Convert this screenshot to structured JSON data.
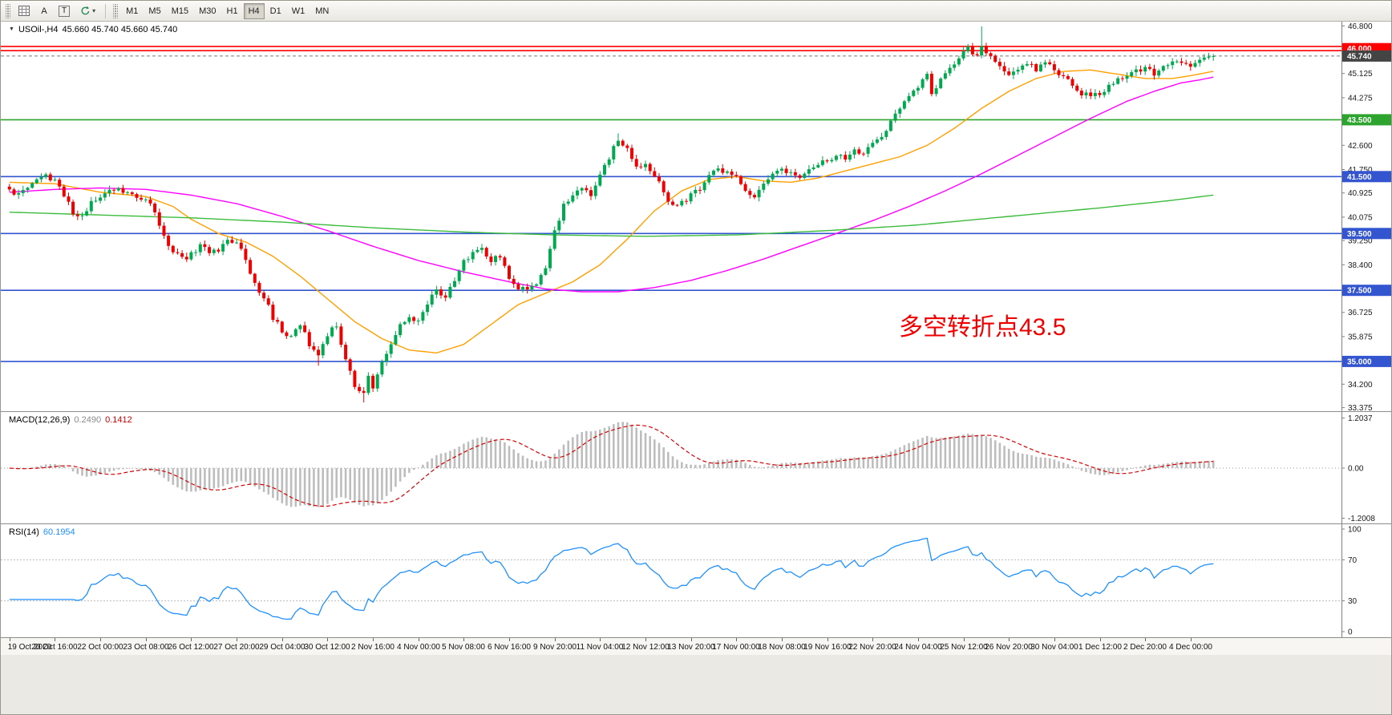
{
  "toolbar": {
    "tools": {
      "a_label": "A",
      "t_label": "T"
    },
    "timeframes": [
      "M1",
      "M5",
      "M15",
      "M30",
      "H1",
      "H4",
      "D1",
      "W1",
      "MN"
    ],
    "active_timeframe": "H4"
  },
  "main_chart": {
    "title": "USOil-,H4",
    "ohlc": "45.660 45.740 45.660 45.740",
    "annotation": {
      "text": "多空转折点43.5",
      "color": "#F00000"
    }
  },
  "chart_data": [
    {
      "type": "candlestick",
      "symbol": "USOil-",
      "timeframe": "H4",
      "bars": 266,
      "price_range": [
        33.25,
        46.95
      ],
      "bull_color": "#00A94F",
      "bear_color": "#EE0000",
      "current_price": 45.74,
      "close_waypoints": [
        [
          0,
          41.05
        ],
        [
          2,
          40.85
        ],
        [
          4,
          41.15
        ],
        [
          6,
          41.35
        ],
        [
          8,
          41.55
        ],
        [
          10,
          41.35
        ],
        [
          12,
          40.85
        ],
        [
          14,
          40.25
        ],
        [
          16,
          40.1
        ],
        [
          18,
          40.55
        ],
        [
          20,
          40.8
        ],
        [
          22,
          41.0
        ],
        [
          24,
          41.1
        ],
        [
          26,
          40.95
        ],
        [
          28,
          40.8
        ],
        [
          30,
          40.75
        ],
        [
          32,
          40.2
        ],
        [
          34,
          39.4
        ],
        [
          36,
          38.85
        ],
        [
          38,
          38.6
        ],
        [
          40,
          38.75
        ],
        [
          42,
          39.05
        ],
        [
          44,
          38.8
        ],
        [
          46,
          38.95
        ],
        [
          48,
          39.2
        ],
        [
          50,
          39.25
        ],
        [
          52,
          38.55
        ],
        [
          54,
          37.75
        ],
        [
          56,
          37.25
        ],
        [
          58,
          36.55
        ],
        [
          60,
          36.1
        ],
        [
          62,
          35.8
        ],
        [
          64,
          36.35
        ],
        [
          66,
          35.55
        ],
        [
          68,
          35.25
        ],
        [
          70,
          35.95
        ],
        [
          72,
          36.25
        ],
        [
          74,
          35.0
        ],
        [
          76,
          34.2
        ],
        [
          78,
          33.85
        ],
        [
          79,
          34.45
        ],
        [
          80,
          34.15
        ],
        [
          82,
          35.0
        ],
        [
          84,
          35.7
        ],
        [
          86,
          36.3
        ],
        [
          88,
          36.55
        ],
        [
          90,
          36.45
        ],
        [
          92,
          37.1
        ],
        [
          94,
          37.45
        ],
        [
          96,
          37.3
        ],
        [
          98,
          37.9
        ],
        [
          100,
          38.5
        ],
        [
          102,
          38.85
        ],
        [
          104,
          39.0
        ],
        [
          106,
          38.55
        ],
        [
          108,
          38.7
        ],
        [
          110,
          37.9
        ],
        [
          112,
          37.5
        ],
        [
          114,
          37.55
        ],
        [
          116,
          37.8
        ],
        [
          118,
          38.3
        ],
        [
          120,
          39.6
        ],
        [
          122,
          40.5
        ],
        [
          124,
          40.8
        ],
        [
          126,
          41.1
        ],
        [
          128,
          40.9
        ],
        [
          130,
          41.5
        ],
        [
          132,
          42.2
        ],
        [
          134,
          42.85
        ],
        [
          136,
          42.5
        ],
        [
          138,
          41.8
        ],
        [
          140,
          41.95
        ],
        [
          142,
          41.6
        ],
        [
          144,
          40.9
        ],
        [
          146,
          40.45
        ],
        [
          148,
          40.6
        ],
        [
          150,
          40.85
        ],
        [
          152,
          41.1
        ],
        [
          154,
          41.5
        ],
        [
          156,
          41.8
        ],
        [
          158,
          41.6
        ],
        [
          160,
          41.55
        ],
        [
          162,
          41.0
        ],
        [
          164,
          40.85
        ],
        [
          166,
          41.3
        ],
        [
          168,
          41.6
        ],
        [
          170,
          41.8
        ],
        [
          172,
          41.6
        ],
        [
          174,
          41.5
        ],
        [
          176,
          41.8
        ],
        [
          178,
          42.0
        ],
        [
          180,
          42.05
        ],
        [
          182,
          42.3
        ],
        [
          184,
          42.2
        ],
        [
          186,
          42.45
        ],
        [
          188,
          42.35
        ],
        [
          190,
          42.6
        ],
        [
          192,
          42.9
        ],
        [
          194,
          43.4
        ],
        [
          196,
          43.9
        ],
        [
          198,
          44.35
        ],
        [
          200,
          44.7
        ],
        [
          202,
          45.15
        ],
        [
          203,
          44.45
        ],
        [
          205,
          44.95
        ],
        [
          207,
          45.3
        ],
        [
          209,
          45.7
        ],
        [
          211,
          46.05
        ],
        [
          213,
          45.75
        ],
        [
          214,
          46.1
        ],
        [
          216,
          45.7
        ],
        [
          218,
          45.45
        ],
        [
          220,
          45.05
        ],
        [
          222,
          45.25
        ],
        [
          224,
          45.5
        ],
        [
          226,
          45.3
        ],
        [
          228,
          45.55
        ],
        [
          230,
          45.3
        ],
        [
          232,
          45.0
        ],
        [
          234,
          44.7
        ],
        [
          236,
          44.45
        ],
        [
          238,
          44.3
        ],
        [
          240,
          44.45
        ],
        [
          242,
          44.7
        ],
        [
          244,
          44.9
        ],
        [
          246,
          45.05
        ],
        [
          248,
          45.2
        ],
        [
          250,
          45.3
        ],
        [
          252,
          45.15
        ],
        [
          254,
          45.35
        ],
        [
          256,
          45.5
        ],
        [
          258,
          45.6
        ],
        [
          260,
          45.45
        ],
        [
          262,
          45.55
        ],
        [
          264,
          45.65
        ],
        [
          265,
          45.74
        ]
      ],
      "spikes": [
        {
          "bar": 78,
          "low": 33.56
        },
        {
          "bar": 68,
          "low": 34.85
        },
        {
          "bar": 134,
          "high": 43.02
        },
        {
          "bar": 214,
          "high": 46.78
        }
      ],
      "moving_averages": [
        {
          "name": "fast",
          "color": "#FFA000",
          "waypoints": [
            [
              0,
              41.3
            ],
            [
              10,
              41.25
            ],
            [
              20,
              40.95
            ],
            [
              30,
              40.8
            ],
            [
              36,
              40.45
            ],
            [
              40,
              40.0
            ],
            [
              46,
              39.5
            ],
            [
              52,
              39.2
            ],
            [
              58,
              38.7
            ],
            [
              64,
              38.0
            ],
            [
              70,
              37.2
            ],
            [
              76,
              36.4
            ],
            [
              82,
              35.8
            ],
            [
              88,
              35.4
            ],
            [
              94,
              35.3
            ],
            [
              100,
              35.6
            ],
            [
              106,
              36.3
            ],
            [
              112,
              37.0
            ],
            [
              118,
              37.4
            ],
            [
              124,
              37.8
            ],
            [
              130,
              38.4
            ],
            [
              136,
              39.3
            ],
            [
              142,
              40.3
            ],
            [
              148,
              41.0
            ],
            [
              154,
              41.4
            ],
            [
              160,
              41.5
            ],
            [
              166,
              41.35
            ],
            [
              172,
              41.3
            ],
            [
              178,
              41.45
            ],
            [
              184,
              41.7
            ],
            [
              190,
              41.95
            ],
            [
              196,
              42.2
            ],
            [
              202,
              42.6
            ],
            [
              208,
              43.2
            ],
            [
              214,
              43.9
            ],
            [
              220,
              44.5
            ],
            [
              226,
              44.95
            ],
            [
              232,
              45.2
            ],
            [
              238,
              45.25
            ],
            [
              244,
              45.1
            ],
            [
              250,
              44.95
            ],
            [
              256,
              44.95
            ],
            [
              260,
              45.05
            ],
            [
              265,
              45.2
            ]
          ]
        },
        {
          "name": "medium",
          "color": "#FF00FF",
          "waypoints": [
            [
              0,
              40.95
            ],
            [
              10,
              41.05
            ],
            [
              20,
              41.1
            ],
            [
              30,
              41.05
            ],
            [
              40,
              40.85
            ],
            [
              50,
              40.55
            ],
            [
              60,
              40.1
            ],
            [
              70,
              39.6
            ],
            [
              80,
              39.05
            ],
            [
              90,
              38.55
            ],
            [
              100,
              38.15
            ],
            [
              110,
              37.8
            ],
            [
              118,
              37.55
            ],
            [
              126,
              37.45
            ],
            [
              134,
              37.45
            ],
            [
              142,
              37.6
            ],
            [
              150,
              37.85
            ],
            [
              158,
              38.2
            ],
            [
              166,
              38.6
            ],
            [
              174,
              39.05
            ],
            [
              182,
              39.5
            ],
            [
              190,
              39.95
            ],
            [
              198,
              40.45
            ],
            [
              206,
              41.0
            ],
            [
              214,
              41.6
            ],
            [
              222,
              42.25
            ],
            [
              230,
              42.9
            ],
            [
              238,
              43.55
            ],
            [
              246,
              44.15
            ],
            [
              252,
              44.5
            ],
            [
              258,
              44.8
            ],
            [
              262,
              44.9
            ],
            [
              265,
              45.0
            ]
          ]
        },
        {
          "name": "slow",
          "color": "#3CBC3C",
          "waypoints": [
            [
              0,
              40.25
            ],
            [
              20,
              40.15
            ],
            [
              40,
              40.05
            ],
            [
              60,
              39.9
            ],
            [
              80,
              39.7
            ],
            [
              100,
              39.55
            ],
            [
              120,
              39.45
            ],
            [
              140,
              39.4
            ],
            [
              160,
              39.45
            ],
            [
              180,
              39.6
            ],
            [
              200,
              39.8
            ],
            [
              220,
              40.1
            ],
            [
              240,
              40.4
            ],
            [
              255,
              40.65
            ],
            [
              265,
              40.85
            ]
          ]
        }
      ],
      "hlines": [
        {
          "price": 46.08,
          "color": "#FF0000"
        },
        {
          "price": 45.93,
          "color": "#FF0000"
        },
        {
          "price": 43.5,
          "color": "#2DA42D"
        },
        {
          "price": 41.5,
          "color": "#3355D0"
        },
        {
          "price": 39.5,
          "color": "#3355D0"
        },
        {
          "price": 37.5,
          "color": "#3355D0"
        },
        {
          "price": 35.0,
          "color": "#3355D0"
        }
      ],
      "y_ticks": [
        46.8,
        45.125,
        44.275,
        42.6,
        41.75,
        40.925,
        40.075,
        39.25,
        38.4,
        36.725,
        35.875,
        34.2,
        33.375
      ],
      "y_tags": [
        {
          "label": "46.000",
          "bg": "#FF0000"
        },
        {
          "label": "45.740",
          "bg": "#444444"
        },
        {
          "label": "43.500",
          "bg": "#2DA42D"
        },
        {
          "label": "41.500",
          "bg": "#3355D0"
        },
        {
          "label": "39.500",
          "bg": "#3355D0"
        },
        {
          "label": "37.500",
          "bg": "#3355D0"
        },
        {
          "label": "35.000",
          "bg": "#3355D0"
        }
      ],
      "x_labels": [
        "19 Oct 2020",
        "20 Oct 16:00",
        "22 Oct 00:00",
        "23 Oct 08:00",
        "26 Oct 12:00",
        "27 Oct 20:00",
        "29 Oct 04:00",
        "30 Oct 12:00",
        "2 Nov 16:00",
        "4 Nov 00:00",
        "5 Nov 08:00",
        "6 Nov 16:00",
        "9 Nov 20:00",
        "11 Nov 04:00",
        "12 Nov 12:00",
        "13 Nov 20:00",
        "17 Nov 00:00",
        "18 Nov 08:00",
        "19 Nov 16:00",
        "22 Nov 20:00",
        "24 Nov 04:00",
        "25 Nov 12:00",
        "26 Nov 20:00",
        "30 Nov 04:00",
        "1 Dec 12:00",
        "2 Dec 20:00",
        "4 Dec 00:00"
      ]
    },
    {
      "type": "macd",
      "title": "MACD(12,26,9)",
      "params": [
        12,
        26,
        9
      ],
      "current_macd": "0.2490",
      "current_signal": "0.1412",
      "histogram_color": "#BDBDBD",
      "signal_color": "#D40000",
      "range": [
        -1.35,
        1.35
      ],
      "scale_labels": [
        "1.2037",
        "0.00",
        "-1.2008"
      ]
    },
    {
      "type": "rsi",
      "title": "RSI(14)",
      "period": 14,
      "current_value": "60.1954",
      "line_color": "#1E90FF",
      "levels": [
        70,
        30
      ],
      "range": [
        0,
        100
      ],
      "scale_labels": [
        "100",
        "70",
        "30",
        "0"
      ]
    }
  ]
}
